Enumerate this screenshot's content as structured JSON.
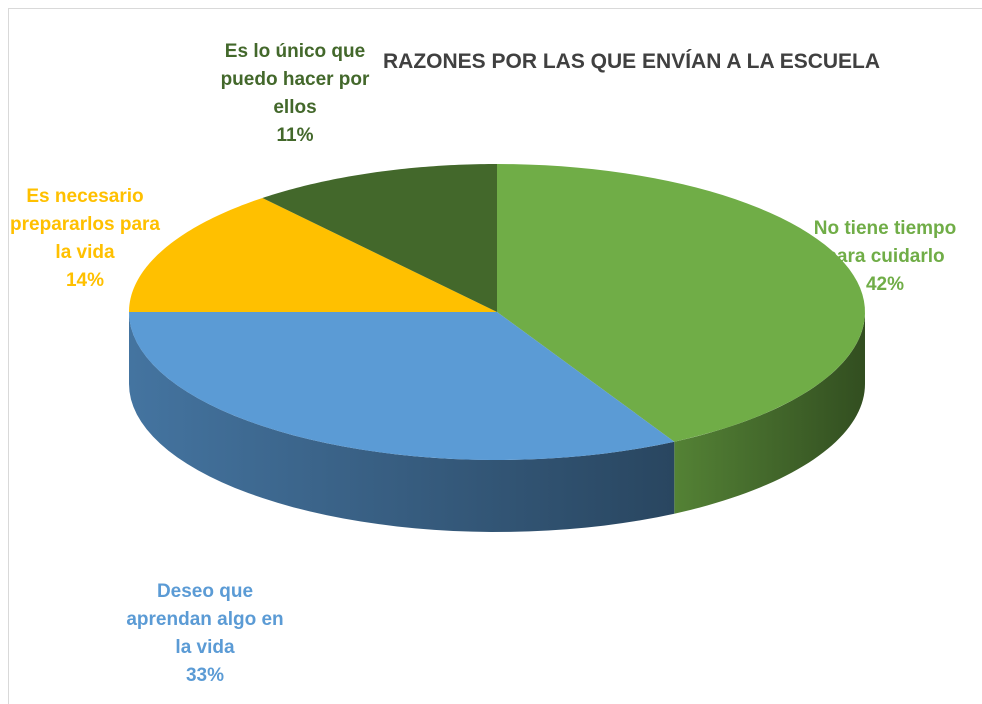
{
  "chart_data": {
    "type": "pie3d",
    "title": "RAZONES POR LAS QUE ENVÍAN A LA ESCUELA",
    "categories": [
      "No tiene tiempo para cuidarlo",
      "Deseo que aprendan algo en la vida",
      "Es necesario prepararlos para la vida",
      "Es lo único que puedo hacer por ellos"
    ],
    "values": [
      42,
      33,
      14,
      11
    ],
    "value_labels": [
      "42%",
      "33%",
      "14%",
      "11%"
    ],
    "colors": [
      "#70ad47",
      "#5b9bd5",
      "#ffc000",
      "#43682b"
    ]
  }
}
